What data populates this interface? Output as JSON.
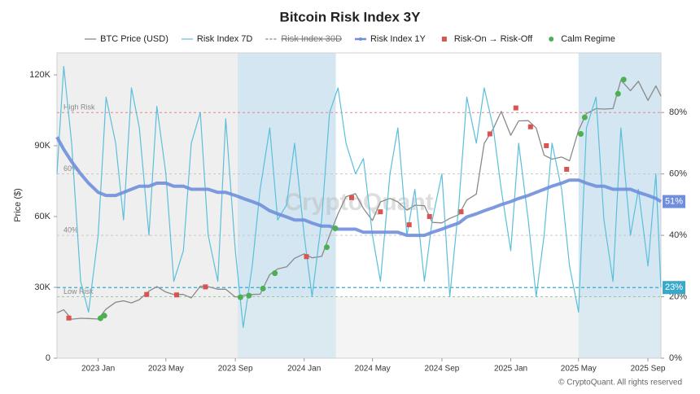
{
  "chart_data": {
    "type": "line",
    "title": "Bitcoin Risk Index 3Y",
    "y_label": "Price ($)",
    "watermark": "CryptoQuant",
    "footer": "© CryptoQuant. All rights reserved",
    "xlim": [
      "2022-10-20",
      "2025-09-24"
    ],
    "xticks": [
      {
        "value": "2023-01-01",
        "label": "2023 Jan"
      },
      {
        "value": "2023-05-01",
        "label": "2023 May"
      },
      {
        "value": "2023-09-01",
        "label": "2023 Sep"
      },
      {
        "value": "2024-01-01",
        "label": "2024 Jan"
      },
      {
        "value": "2024-05-01",
        "label": "2024 May"
      },
      {
        "value": "2024-09-01",
        "label": "2024 Sep"
      },
      {
        "value": "2025-01-01",
        "label": "2025 Jan"
      },
      {
        "value": "2025-05-01",
        "label": "2025 May"
      },
      {
        "value": "2025-09-01",
        "label": "2025 Sep"
      }
    ],
    "ylim": [
      0,
      129300
    ],
    "yticks": [
      0,
      {
        "value": 30000,
        "label": "30K"
      },
      {
        "value": 60000,
        "label": "60K"
      },
      {
        "value": 90000,
        "label": "90K"
      },
      {
        "value": 120000,
        "label": "120K"
      }
    ],
    "y2lim": [
      0,
      99.4
    ],
    "y2ticks": [
      {
        "value": 0,
        "label": "0%"
      },
      {
        "value": 20,
        "label": "20%"
      },
      {
        "value": 40,
        "label": "40%"
      },
      {
        "value": 60,
        "label": "60%"
      },
      {
        "value": 80,
        "label": "80%"
      }
    ],
    "regions": [
      {
        "start": "2022-10-20",
        "end": "2023-09-05",
        "color": "#efefef"
      },
      {
        "start": "2023-09-05",
        "end": "2024-02-26",
        "color": "#d3e6f1"
      },
      {
        "start": "2025-05-01",
        "end": "2025-09-24",
        "color": "#d3e6f1"
      }
    ],
    "thresholds": [
      {
        "value": 80,
        "label": "High Risk",
        "color": "#e08a8a"
      },
      {
        "value": 60,
        "label": "60%",
        "color": "#c8c8c8"
      },
      {
        "value": 40,
        "label": "40%",
        "color": "#c8c8c8"
      },
      {
        "value": 20,
        "label": "Low Risk",
        "color": "#9bc79b"
      }
    ],
    "low_zone_color": "#efefef",
    "x": [
      "2022-10-20",
      "2022-11-01",
      "2022-11-15",
      "2022-12-01",
      "2022-12-15",
      "2023-01-01",
      "2023-01-15",
      "2023-02-01",
      "2023-02-15",
      "2023-03-01",
      "2023-03-15",
      "2023-04-01",
      "2023-04-15",
      "2023-05-01",
      "2023-05-15",
      "2023-06-01",
      "2023-06-15",
      "2023-07-01",
      "2023-07-15",
      "2023-08-01",
      "2023-08-15",
      "2023-09-01",
      "2023-09-15",
      "2023-10-01",
      "2023-10-15",
      "2023-11-01",
      "2023-11-15",
      "2023-12-01",
      "2023-12-15",
      "2024-01-01",
      "2024-01-15",
      "2024-02-01",
      "2024-02-15",
      "2024-03-01",
      "2024-03-15",
      "2024-04-01",
      "2024-04-15",
      "2024-05-01",
      "2024-05-15",
      "2024-06-01",
      "2024-06-15",
      "2024-07-01",
      "2024-07-15",
      "2024-08-01",
      "2024-08-15",
      "2024-09-01",
      "2024-09-15",
      "2024-10-01",
      "2024-10-15",
      "2024-11-01",
      "2024-11-15",
      "2024-12-01",
      "2024-12-15",
      "2025-01-01",
      "2025-01-15",
      "2025-02-01",
      "2025-02-15",
      "2025-03-01",
      "2025-03-15",
      "2025-04-01",
      "2025-04-15",
      "2025-05-01",
      "2025-05-15",
      "2025-06-01",
      "2025-06-15",
      "2025-07-01",
      "2025-07-15",
      "2025-08-01",
      "2025-08-15",
      "2025-09-01",
      "2025-09-15",
      "2025-09-24"
    ],
    "series": [
      {
        "name": "BTC Price (USD)",
        "type": "line",
        "color": "#8a8a8a",
        "width": 1.3,
        "values": [
          19200,
          20500,
          16500,
          16900,
          16800,
          16600,
          20800,
          23700,
          24300,
          23400,
          24800,
          28400,
          30300,
          28000,
          27000,
          27000,
          25500,
          30500,
          30300,
          29200,
          29200,
          25900,
          26600,
          27000,
          27100,
          35400,
          37800,
          38700,
          42300,
          44200,
          42500,
          43100,
          52000,
          61200,
          68400,
          69700,
          63400,
          58300,
          66200,
          67700,
          66200,
          62700,
          64800,
          64600,
          57500,
          57300,
          59200,
          60800,
          67000,
          69500,
          91000,
          97200,
          104500,
          94400,
          100500,
          100600,
          97500,
          86000,
          84300,
          85200,
          83600,
          96500,
          103600,
          105700,
          105500,
          105700,
          117800,
          113300,
          117300,
          109200,
          115300,
          111000
        ]
      },
      {
        "name": "Risk Index 7D",
        "type": "line",
        "axis": "y2",
        "color": "#5bbfdb",
        "width": 1.2,
        "values": [
          60,
          95,
          70,
          25,
          15,
          40,
          85,
          70,
          45,
          88,
          75,
          40,
          82,
          60,
          25,
          35,
          70,
          80,
          40,
          25,
          78,
          35,
          10,
          30,
          55,
          75,
          45,
          50,
          70,
          40,
          20,
          45,
          80,
          88,
          70,
          60,
          65,
          40,
          25,
          60,
          75,
          40,
          55,
          25,
          45,
          60,
          20,
          50,
          85,
          70,
          88,
          75,
          55,
          35,
          70,
          45,
          20,
          40,
          70,
          55,
          30,
          15,
          75,
          85,
          45,
          25,
          75,
          40,
          55,
          30,
          60,
          23
        ]
      },
      {
        "name": "Risk Index 30D",
        "type": "line",
        "axis": "y2",
        "color": "#9a9a9a",
        "visible": false
      },
      {
        "name": "Risk Index 1Y",
        "type": "line",
        "axis": "y2",
        "color": "#6f8fdc",
        "width": 4,
        "values": [
          72,
          68,
          64,
          60,
          57,
          54,
          53,
          53,
          54,
          55,
          56,
          56,
          57,
          57,
          56,
          56,
          55,
          55,
          55,
          54,
          54,
          53,
          52,
          51,
          50,
          48,
          47,
          46,
          45,
          45,
          44,
          43,
          43,
          42,
          42,
          42,
          41,
          41,
          41,
          41,
          41,
          40,
          40,
          40,
          41,
          42,
          43,
          44,
          46,
          47,
          48,
          49,
          50,
          51,
          52,
          53,
          54,
          55,
          56,
          57,
          58,
          58,
          57,
          56,
          56,
          55,
          55,
          55,
          54,
          53,
          52,
          51
        ]
      },
      {
        "name": "Risk-On → Risk-Off",
        "type": "scatter",
        "marker": "square",
        "color": "#d9534f",
        "x": [
          "2022-11-10",
          "2023-03-28",
          "2023-05-20",
          "2023-07-10",
          "2024-01-05",
          "2024-03-25",
          "2024-05-15",
          "2024-07-05",
          "2024-08-10",
          "2024-10-05",
          "2024-11-25",
          "2025-01-10",
          "2025-02-05",
          "2025-03-05",
          "2025-04-10"
        ],
        "values": [
          17000,
          27000,
          26800,
          30200,
          43000,
          68000,
          62000,
          56500,
          60000,
          62000,
          95000,
          106000,
          98000,
          90000,
          80000
        ]
      },
      {
        "name": "Calm Regime",
        "type": "scatter",
        "marker": "circle",
        "color": "#4caf50",
        "x": [
          "2023-01-05",
          "2023-01-12",
          "2023-09-10",
          "2023-09-25",
          "2023-10-20",
          "2023-11-10",
          "2024-02-10",
          "2024-02-25",
          "2025-05-05",
          "2025-05-12",
          "2025-07-10",
          "2025-07-20"
        ],
        "values": [
          16900,
          18000,
          25800,
          26500,
          29500,
          36000,
          47000,
          55000,
          95000,
          102000,
          112000,
          118000
        ]
      }
    ],
    "end_labels": [
      {
        "value": 51,
        "label": "51%",
        "color": "#6f8fdc",
        "dashed": false
      },
      {
        "value": 23,
        "label": "23%",
        "color": "#3aa9c9",
        "dashed": true
      }
    ]
  }
}
